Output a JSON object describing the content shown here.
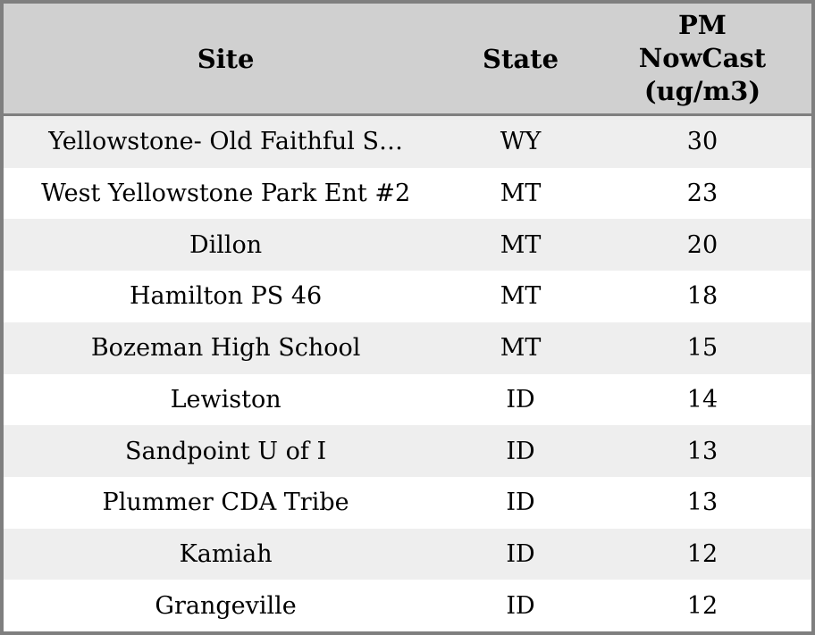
{
  "table": {
    "columns": {
      "site": "Site",
      "state": "State",
      "pm": "PM\nNowCast\n(ug/m3)"
    },
    "rows": [
      {
        "site": "Yellowstone- Old Faithful S…",
        "state": "WY",
        "pm": 30
      },
      {
        "site": "West Yellowstone Park Ent #2",
        "state": "MT",
        "pm": 23
      },
      {
        "site": "Dillon",
        "state": "MT",
        "pm": 20
      },
      {
        "site": "Hamilton PS 46",
        "state": "MT",
        "pm": 18
      },
      {
        "site": "Bozeman High School",
        "state": "MT",
        "pm": 15
      },
      {
        "site": "Lewiston",
        "state": "ID",
        "pm": 14
      },
      {
        "site": "Sandpoint U of I",
        "state": "ID",
        "pm": 13
      },
      {
        "site": "Plummer CDA Tribe",
        "state": "ID",
        "pm": 13
      },
      {
        "site": "Kamiah",
        "state": "ID",
        "pm": 12
      },
      {
        "site": "Grangeville",
        "state": "ID",
        "pm": 12
      }
    ],
    "colors": {
      "header_bg": "#d0d0d0",
      "row_bg": "#ffffff",
      "row_alt_bg": "#eeeeee",
      "border": "#7f7f7f",
      "text": "#000000"
    }
  },
  "chart_data": {
    "type": "table",
    "title": "",
    "columns": [
      "Site",
      "State",
      "PM NowCast (ug/m3)"
    ],
    "rows": [
      [
        "Yellowstone- Old Faithful S…",
        "WY",
        30
      ],
      [
        "West Yellowstone Park Ent #2",
        "MT",
        23
      ],
      [
        "Dillon",
        "MT",
        20
      ],
      [
        "Hamilton PS 46",
        "MT",
        18
      ],
      [
        "Bozeman High School",
        "MT",
        15
      ],
      [
        "Lewiston",
        "ID",
        14
      ],
      [
        "Sandpoint U of I",
        "ID",
        13
      ],
      [
        "Plummer CDA Tribe",
        "ID",
        13
      ],
      [
        "Kamiah",
        "ID",
        12
      ],
      [
        "Grangeville",
        "ID",
        12
      ]
    ]
  }
}
